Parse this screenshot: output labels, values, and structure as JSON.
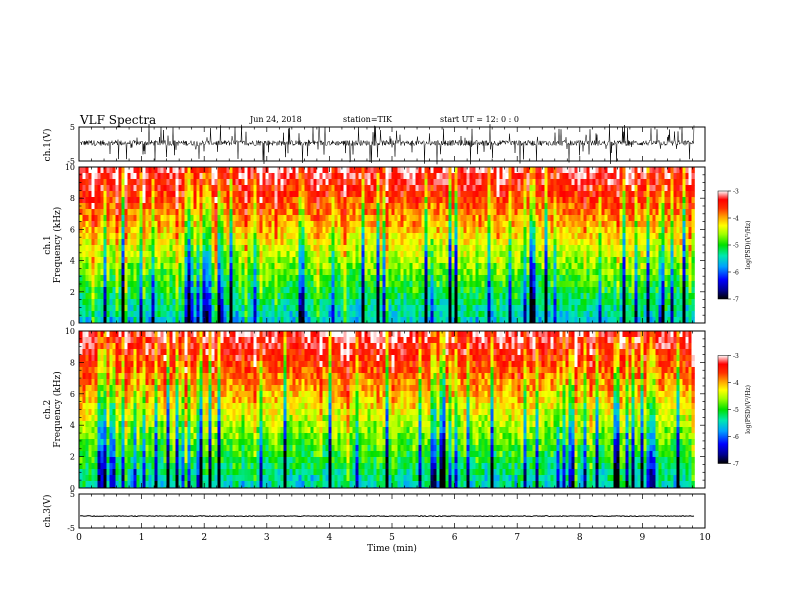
{
  "header": {
    "title": "VLF Spectra",
    "date": "Jun 24, 2018",
    "station": "station=TIK",
    "time": "start UT =   12: 0 : 0"
  },
  "chart_data": [
    {
      "type": "line",
      "title": "",
      "ylabel": "ch.1(V)",
      "xlim": [
        0,
        10
      ],
      "ylim": [
        -5,
        5
      ],
      "yticks": [
        "5",
        "-5"
      ],
      "series": [
        {
          "values_description_free": true,
          "mean": 0.5,
          "spread": 4.5
        }
      ]
    },
    {
      "type": "heatmap",
      "ylabel": "ch.1\nFrequency (kHz)",
      "ylabel_lines": [
        "ch.1",
        "Frequency (kHz)"
      ],
      "xlim": [
        0,
        10
      ],
      "ylim": [
        0,
        10
      ],
      "yticks": [
        "0",
        "2",
        "4",
        "6",
        "8",
        "10"
      ],
      "data_end_min": 9.83,
      "colorbar": {
        "label": "log(PSD)(V²/Hz)",
        "range": [
          -7,
          -3
        ],
        "ticks": [
          "-3",
          "-4",
          "-5",
          "-6",
          "-7"
        ]
      }
    },
    {
      "type": "heatmap",
      "ylabel": "ch.2\nFrequency (kHz)",
      "ylabel_lines": [
        "ch.2",
        "Frequency (kHz)"
      ],
      "xlim": [
        0,
        10
      ],
      "ylim": [
        0,
        10
      ],
      "yticks": [
        "0",
        "2",
        "4",
        "6",
        "8",
        "10"
      ],
      "data_end_min": 9.83,
      "colorbar": {
        "label": "log(PSD)(V²/Hz)",
        "range": [
          -7,
          -3
        ],
        "ticks": [
          "-3",
          "-4",
          "-5",
          "-6",
          "-7"
        ]
      }
    },
    {
      "type": "line",
      "ylabel": "ch.3(V)",
      "xlim": [
        0,
        10
      ],
      "ylim": [
        -5,
        5
      ],
      "yticks": [
        "5",
        "-5"
      ],
      "series": [
        {
          "level": -1.5
        }
      ],
      "xlabel": "Time (min)",
      "xticks": [
        "0",
        "1",
        "2",
        "3",
        "4",
        "5",
        "6",
        "7",
        "8",
        "9",
        "10"
      ]
    }
  ],
  "colors": {
    "axis": "#000000",
    "trace": "#000000",
    "colormap": [
      "#000000",
      "#00008c",
      "#0000ff",
      "#00a0ff",
      "#00e8b0",
      "#00e000",
      "#a0ff00",
      "#ffff00",
      "#ffa000",
      "#ff3000",
      "#ff0000",
      "#ffffff"
    ]
  }
}
